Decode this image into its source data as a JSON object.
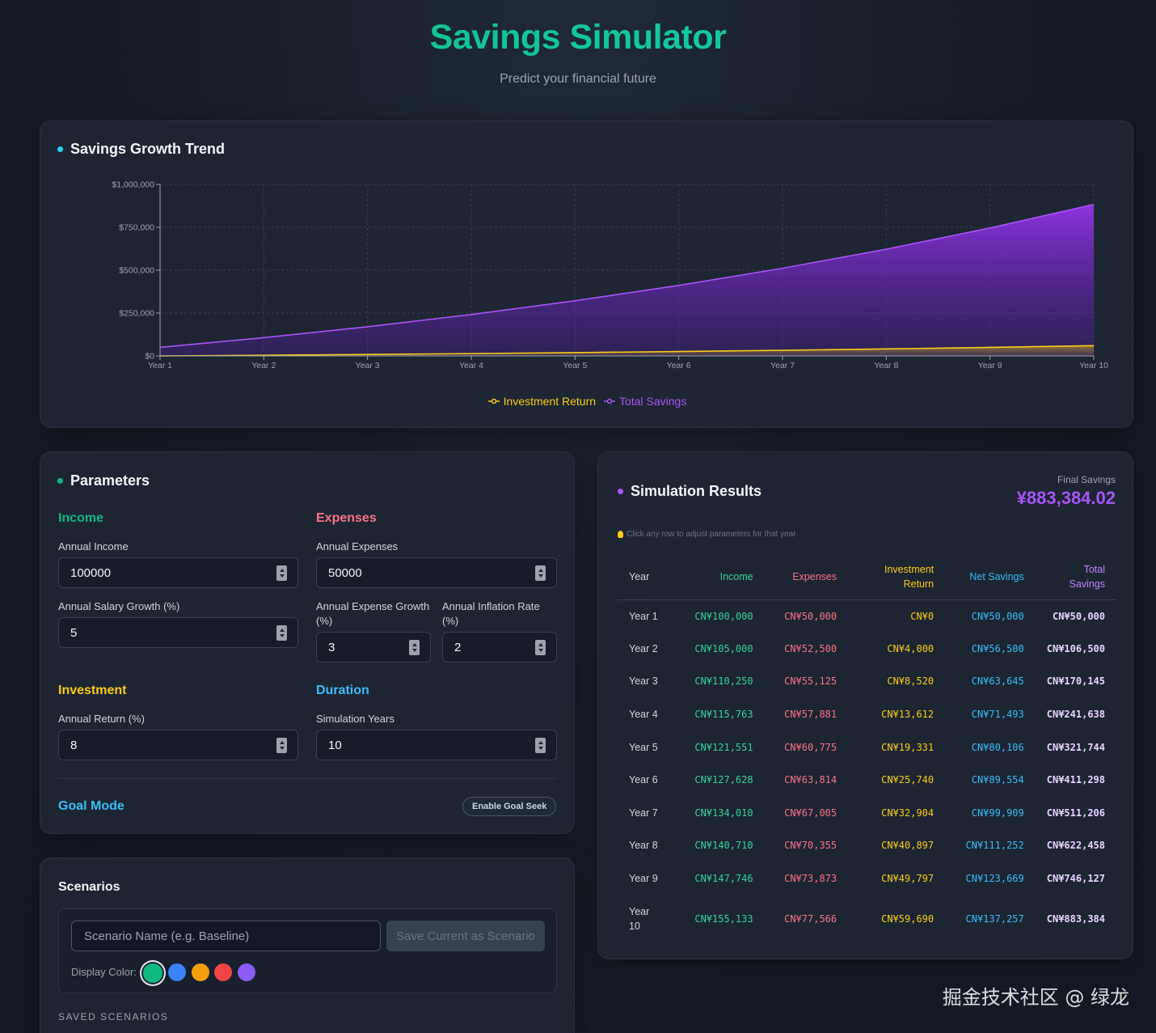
{
  "header": {
    "title": "Savings Simulator",
    "subtitle": "Predict your financial future"
  },
  "colors": {
    "accent": "#10b981",
    "income": "#34d399",
    "expenses": "#fb7185",
    "investment": "#facc15",
    "net": "#38bdf8",
    "total": "#a855f7"
  },
  "chart": {
    "title": "Savings Growth Trend",
    "legend": [
      "Investment Return",
      "Total Savings"
    ]
  },
  "chart_data": {
    "type": "area",
    "title": "Savings Growth Trend",
    "xlabel": "",
    "ylabel": "",
    "categories": [
      "Year 1",
      "Year 2",
      "Year 3",
      "Year 4",
      "Year 5",
      "Year 6",
      "Year 7",
      "Year 8",
      "Year 9",
      "Year 10"
    ],
    "ylim": [
      0,
      1000000
    ],
    "yticks": [
      "$0",
      "$250,000",
      "$500,000",
      "$750,000",
      "$1,000,000"
    ],
    "grid": true,
    "legend_position": "bottom",
    "series": [
      {
        "name": "Investment Return",
        "color": "#facc15",
        "values": [
          0,
          4000,
          8520,
          13612,
          19331,
          25740,
          32904,
          40897,
          49797,
          59690
        ]
      },
      {
        "name": "Total Savings",
        "color": "#a855f7",
        "values": [
          50000,
          106500,
          170145,
          241638,
          321744,
          411298,
          511206,
          622458,
          746127,
          883384
        ]
      }
    ]
  },
  "params": {
    "title": "Parameters",
    "income": {
      "heading": "Income",
      "annual_income_label": "Annual Income",
      "annual_income": "100000",
      "salary_growth_label": "Annual Salary Growth (%)",
      "salary_growth": "5"
    },
    "expenses": {
      "heading": "Expenses",
      "annual_expenses_label": "Annual Expenses",
      "annual_expenses": "50000",
      "expense_growth_label": "Annual Expense Growth (%)",
      "expense_growth": "3",
      "inflation_label": "Annual Inflation Rate (%)",
      "inflation": "2"
    },
    "investment": {
      "heading": "Investment",
      "return_label": "Annual Return (%)",
      "return": "8"
    },
    "duration": {
      "heading": "Duration",
      "years_label": "Simulation Years",
      "years": "10"
    },
    "goal": {
      "heading": "Goal Mode",
      "button": "Enable Goal Seek"
    }
  },
  "scenarios": {
    "title": "Scenarios",
    "name_placeholder": "Scenario Name (e.g. Baseline)",
    "save_button": "Save Current as Scenario",
    "color_label": "Display Color:",
    "swatches": [
      "#10b981",
      "#3b82f6",
      "#f59e0b",
      "#ef4444",
      "#8b5cf6"
    ],
    "saved_title": "SAVED SCENARIOS"
  },
  "results": {
    "title": "Simulation Results",
    "final_label": "Final Savings",
    "final_value": "¥883,384.02",
    "hint": "Click any row to adjust parameters for that year",
    "headers": [
      "Year",
      "Income",
      "Expenses",
      "Investment Return",
      "Net Savings",
      "Total Savings"
    ],
    "rows": [
      [
        "Year 1",
        "CN¥100,000",
        "CN¥50,000",
        "CN¥0",
        "CN¥50,000",
        "CN¥50,000"
      ],
      [
        "Year 2",
        "CN¥105,000",
        "CN¥52,500",
        "CN¥4,000",
        "CN¥56,500",
        "CN¥106,500"
      ],
      [
        "Year 3",
        "CN¥110,250",
        "CN¥55,125",
        "CN¥8,520",
        "CN¥63,645",
        "CN¥170,145"
      ],
      [
        "Year 4",
        "CN¥115,763",
        "CN¥57,881",
        "CN¥13,612",
        "CN¥71,493",
        "CN¥241,638"
      ],
      [
        "Year 5",
        "CN¥121,551",
        "CN¥60,775",
        "CN¥19,331",
        "CN¥80,106",
        "CN¥321,744"
      ],
      [
        "Year 6",
        "CN¥127,628",
        "CN¥63,814",
        "CN¥25,740",
        "CN¥89,554",
        "CN¥411,298"
      ],
      [
        "Year 7",
        "CN¥134,010",
        "CN¥67,005",
        "CN¥32,904",
        "CN¥99,909",
        "CN¥511,206"
      ],
      [
        "Year 8",
        "CN¥140,710",
        "CN¥70,355",
        "CN¥40,897",
        "CN¥111,252",
        "CN¥622,458"
      ],
      [
        "Year 9",
        "CN¥147,746",
        "CN¥73,873",
        "CN¥49,797",
        "CN¥123,669",
        "CN¥746,127"
      ],
      [
        "Year 10",
        "CN¥155,133",
        "CN¥77,566",
        "CN¥59,690",
        "CN¥137,257",
        "CN¥883,384"
      ]
    ]
  },
  "watermark": "掘金技术社区 @ 绿龙"
}
